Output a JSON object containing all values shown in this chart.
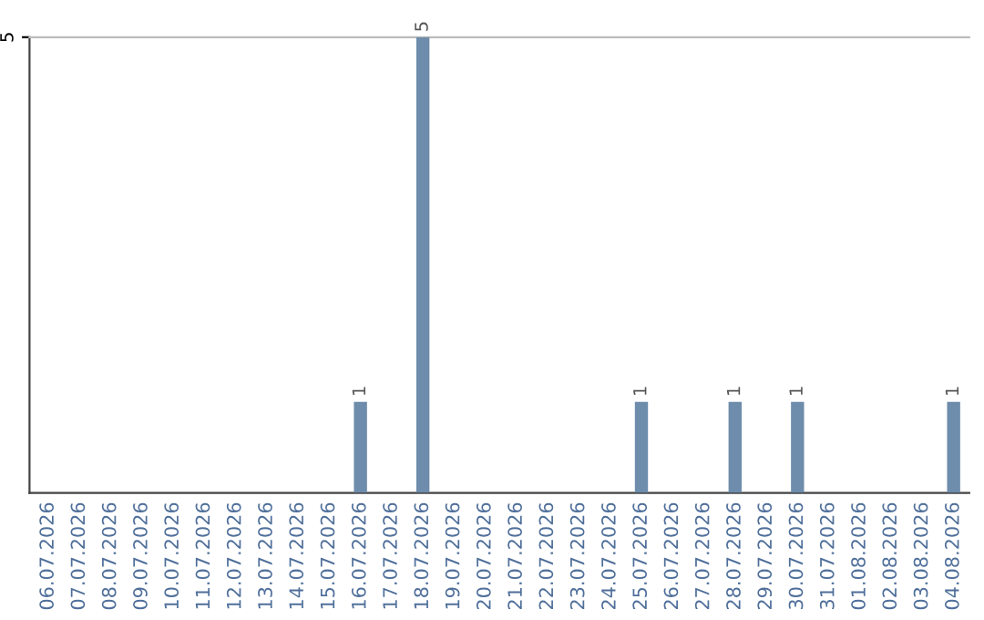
{
  "chart_data": {
    "type": "bar",
    "categories": [
      "06.07.2026",
      "07.07.2026",
      "08.07.2026",
      "09.07.2026",
      "10.07.2026",
      "11.07.2026",
      "12.07.2026",
      "13.07.2026",
      "14.07.2026",
      "15.07.2026",
      "16.07.2026",
      "17.07.2026",
      "18.07.2026",
      "19.07.2026",
      "20.07.2026",
      "21.07.2026",
      "22.07.2026",
      "23.07.2026",
      "24.07.2026",
      "25.07.2026",
      "26.07.2026",
      "27.07.2026",
      "28.07.2026",
      "29.07.2026",
      "30.07.2026",
      "31.07.2026",
      "01.08.2026",
      "02.08.2026",
      "03.08.2026",
      "04.08.2026"
    ],
    "values": [
      0,
      0,
      0,
      0,
      0,
      0,
      0,
      0,
      0,
      0,
      1,
      0,
      5,
      0,
      0,
      0,
      0,
      0,
      0,
      1,
      0,
      0,
      1,
      0,
      1,
      0,
      0,
      0,
      0,
      1
    ],
    "value_labels": [
      null,
      null,
      null,
      null,
      null,
      null,
      null,
      null,
      null,
      null,
      "1",
      null,
      "5",
      null,
      null,
      null,
      null,
      null,
      null,
      "1",
      null,
      null,
      "1",
      null,
      "1",
      null,
      null,
      null,
      null,
      "1"
    ],
    "color": "#6e8cab",
    "ylim": [
      0,
      5
    ],
    "yticks": [
      5
    ]
  }
}
